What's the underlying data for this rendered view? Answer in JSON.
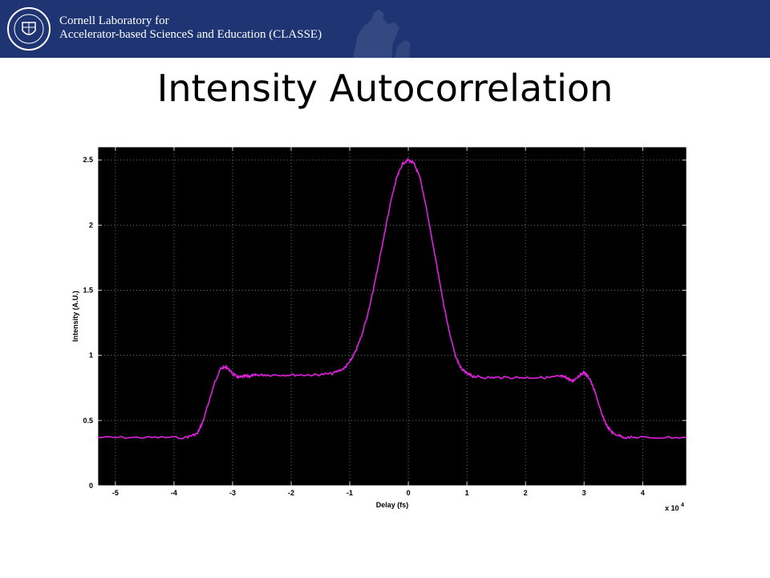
{
  "header": {
    "org_line1": "Cornell Laboratory for",
    "org_line2": "Accelerator-based ScienceS and Education (CLASSE)",
    "background_color": "#1f3573",
    "seal_icon": "cornell-seal-icon",
    "statue_icon": "statue-silhouette-icon"
  },
  "slide": {
    "title": "Intensity Autocorrelation"
  },
  "chart_data": {
    "type": "line",
    "title": "",
    "xlabel": "Delay (fs)",
    "ylabel": "Intensity (A.U.)",
    "x_multiplier": "x 10",
    "x_multiplier_exponent": "4",
    "xlim": [
      -5.3,
      4.75
    ],
    "ylim": [
      0,
      2.6
    ],
    "xticks": [
      -5,
      -4,
      -3,
      -2,
      -1,
      0,
      1,
      2,
      3,
      4
    ],
    "xtick_labels": [
      "-5",
      "-4",
      "-3",
      "-2",
      "-1",
      "0",
      "1",
      "2",
      "3",
      "4"
    ],
    "yticks": [
      0,
      0.5,
      1,
      1.5,
      2,
      2.5
    ],
    "ytick_labels": [
      "0",
      "0.5",
      "1",
      "1.5",
      "2",
      "2.5"
    ],
    "grid": true,
    "background_color": "#000000",
    "line_color": "#e020e0",
    "series": [
      {
        "x": [
          -5.3,
          -4.5,
          -3.8,
          -3.6,
          -3.5,
          -3.4,
          -3.3,
          -3.2,
          -3.1,
          -3.0,
          -2.9,
          -2.8,
          -2.7,
          -2.6,
          -2.4,
          -2.0,
          -1.6,
          -1.3,
          -1.1,
          -1.0,
          -0.9,
          -0.8,
          -0.7,
          -0.6,
          -0.5,
          -0.4,
          -0.3,
          -0.2,
          -0.1,
          0.0,
          0.1,
          0.2,
          0.3,
          0.4,
          0.5,
          0.6,
          0.7,
          0.8,
          0.9,
          1.0,
          1.1,
          1.3,
          1.6,
          2.0,
          2.4,
          2.6,
          2.7,
          2.8,
          2.9,
          3.0,
          3.1,
          3.2,
          3.3,
          3.4,
          3.5,
          3.7,
          4.0,
          4.75
        ],
        "y": [
          0.37,
          0.37,
          0.37,
          0.4,
          0.5,
          0.65,
          0.8,
          0.9,
          0.91,
          0.86,
          0.83,
          0.84,
          0.84,
          0.85,
          0.85,
          0.85,
          0.85,
          0.86,
          0.9,
          0.95,
          1.03,
          1.15,
          1.3,
          1.5,
          1.72,
          1.95,
          2.18,
          2.36,
          2.47,
          2.5,
          2.47,
          2.36,
          2.15,
          1.9,
          1.65,
          1.4,
          1.18,
          1.0,
          0.9,
          0.86,
          0.84,
          0.83,
          0.83,
          0.83,
          0.83,
          0.84,
          0.83,
          0.8,
          0.84,
          0.87,
          0.82,
          0.7,
          0.55,
          0.45,
          0.4,
          0.37,
          0.37,
          0.37
        ]
      }
    ]
  }
}
